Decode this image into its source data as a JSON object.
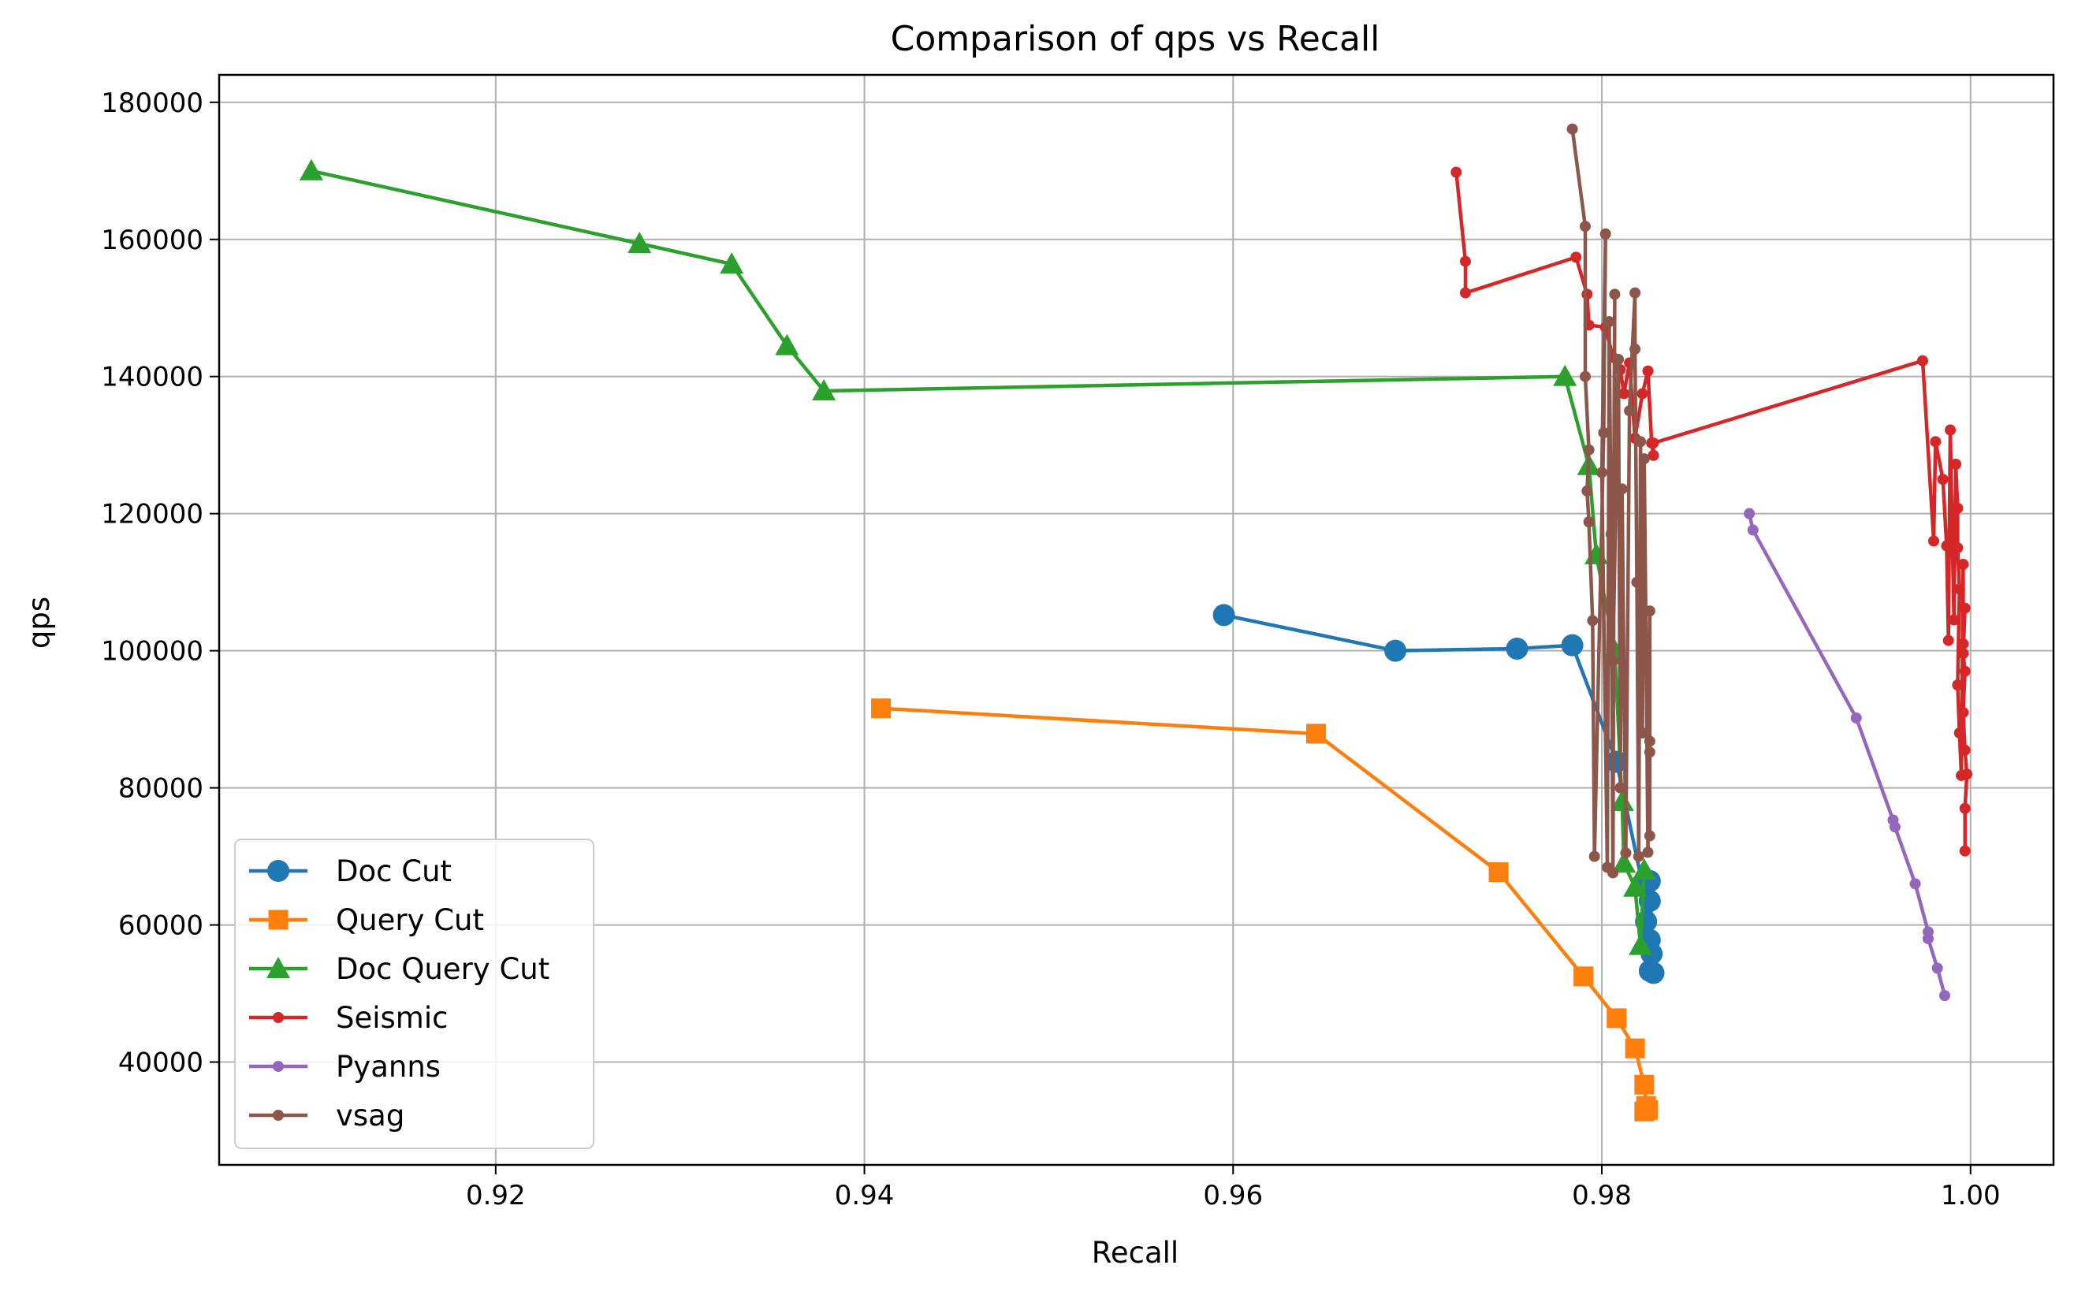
{
  "chart_data": {
    "type": "line",
    "title": "Comparison of qps vs Recall",
    "xlabel": "Recall",
    "ylabel": "qps",
    "xlim": [
      0.905,
      1.0045
    ],
    "ylim": [
      25000,
      184000
    ],
    "xticks": [
      0.92,
      0.94,
      0.96,
      0.98,
      1.0
    ],
    "xtick_labels": [
      "0.92",
      "0.94",
      "0.96",
      "0.98",
      "1.00"
    ],
    "yticks": [
      40000,
      60000,
      80000,
      100000,
      120000,
      140000,
      160000,
      180000
    ],
    "ytick_labels": [
      "40000",
      "60000",
      "80000",
      "100000",
      "120000",
      "140000",
      "160000",
      "180000"
    ],
    "grid": true,
    "legend_position": "lower-left",
    "series": [
      {
        "name": "Doc Cut",
        "color": "#1f77b4",
        "marker": "circle",
        "marker_size": "large",
        "points": [
          [
            0.9595,
            105200
          ],
          [
            0.9688,
            100000
          ],
          [
            0.9754,
            100300
          ],
          [
            0.9784,
            100800
          ],
          [
            0.9808,
            83800
          ],
          [
            0.9822,
            66000
          ],
          [
            0.9826,
            63500
          ],
          [
            0.9824,
            60500
          ],
          [
            0.9826,
            57800
          ],
          [
            0.9827,
            55800
          ],
          [
            0.9826,
            53300
          ],
          [
            0.9828,
            53000
          ],
          [
            0.9826,
            66400
          ]
        ]
      },
      {
        "name": "Query Cut",
        "color": "#ff7f0e",
        "marker": "square",
        "marker_size": "large",
        "points": [
          [
            0.9409,
            91600
          ],
          [
            0.9645,
            87900
          ],
          [
            0.9744,
            67700
          ],
          [
            0.979,
            52500
          ],
          [
            0.9808,
            46400
          ],
          [
            0.9818,
            42000
          ],
          [
            0.9823,
            36700
          ],
          [
            0.9824,
            33600
          ],
          [
            0.9823,
            32800
          ],
          [
            0.9825,
            33000
          ]
        ]
      },
      {
        "name": "Doc Query Cut",
        "color": "#2ca02c",
        "marker": "triangle",
        "marker_size": "large",
        "points": [
          [
            0.91,
            170000
          ],
          [
            0.9278,
            159400
          ],
          [
            0.9328,
            156400
          ],
          [
            0.9358,
            144500
          ],
          [
            0.9378,
            137900
          ],
          [
            0.978,
            140000
          ],
          [
            0.9793,
            127000
          ],
          [
            0.9797,
            114000
          ],
          [
            0.9807,
            100000
          ],
          [
            0.9811,
            78000
          ],
          [
            0.9812,
            69000
          ],
          [
            0.9818,
            65500
          ],
          [
            0.9821,
            57000
          ],
          [
            0.9823,
            68000
          ]
        ]
      },
      {
        "name": "Seismic",
        "color": "#d62728",
        "marker": "dot",
        "marker_size": "small",
        "points": [
          [
            0.9721,
            169800
          ],
          [
            0.9726,
            156800
          ],
          [
            0.9726,
            152200
          ],
          [
            0.9786,
            157400
          ],
          [
            0.9792,
            152000
          ],
          [
            0.9793,
            147500
          ],
          [
            0.9802,
            147200
          ],
          [
            0.9806,
            142800
          ],
          [
            0.981,
            141000
          ],
          [
            0.9812,
            137500
          ],
          [
            0.9815,
            142000
          ],
          [
            0.9818,
            131000
          ],
          [
            0.9822,
            137500
          ],
          [
            0.9825,
            140800
          ],
          [
            0.9827,
            130300
          ],
          [
            0.9828,
            128500
          ],
          [
            0.9828,
            130300
          ],
          [
            0.9974,
            142300
          ],
          [
            0.998,
            116000
          ],
          [
            0.9981,
            130500
          ],
          [
            0.9985,
            125000
          ],
          [
            0.9987,
            115300
          ],
          [
            0.9988,
            101500
          ],
          [
            0.9989,
            132200
          ],
          [
            0.9991,
            104500
          ],
          [
            0.9992,
            127200
          ],
          [
            0.9993,
            120800
          ],
          [
            0.9993,
            115000
          ],
          [
            0.9994,
            109000
          ],
          [
            0.9993,
            95000
          ],
          [
            0.9994,
            88000
          ],
          [
            0.9995,
            81800
          ],
          [
            0.9996,
            112600
          ],
          [
            0.9996,
            101000
          ],
          [
            0.9997,
            106200
          ],
          [
            0.9996,
            99600
          ],
          [
            0.9997,
            97000
          ],
          [
            0.9996,
            91000
          ],
          [
            0.9997,
            85500
          ],
          [
            0.9998,
            82000
          ],
          [
            0.9997,
            77000
          ],
          [
            0.9997,
            70800
          ]
        ]
      },
      {
        "name": "Pyanns",
        "color": "#9467bd",
        "marker": "dot",
        "marker_size": "small",
        "points": [
          [
            0.988,
            120000
          ],
          [
            0.9882,
            117600
          ],
          [
            0.9938,
            90200
          ],
          [
            0.9958,
            75300
          ],
          [
            0.9959,
            74300
          ],
          [
            0.997,
            66000
          ],
          [
            0.9977,
            59000
          ],
          [
            0.9977,
            58000
          ],
          [
            0.9982,
            53700
          ],
          [
            0.9986,
            49700
          ]
        ]
      },
      {
        "name": "vsag",
        "color": "#8c564b",
        "marker": "dot",
        "marker_size": "small",
        "points": [
          [
            0.9784,
            176100
          ],
          [
            0.9791,
            161900
          ],
          [
            0.9791,
            140000
          ],
          [
            0.9793,
            129300
          ],
          [
            0.9792,
            123300
          ],
          [
            0.9793,
            118800
          ],
          [
            0.9795,
            104400
          ],
          [
            0.9796,
            70000
          ],
          [
            0.9801,
            131800
          ],
          [
            0.9802,
            160800
          ],
          [
            0.98,
            126000
          ],
          [
            0.9803,
            68400
          ],
          [
            0.9804,
            148000
          ],
          [
            0.9805,
            117000
          ],
          [
            0.9806,
            67600
          ],
          [
            0.9807,
            152000
          ],
          [
            0.9806,
            98500
          ],
          [
            0.9809,
            142500
          ],
          [
            0.981,
            80000
          ],
          [
            0.9811,
            123600
          ],
          [
            0.9813,
            70500
          ],
          [
            0.9815,
            135000
          ],
          [
            0.9818,
            152200
          ],
          [
            0.9818,
            144000
          ],
          [
            0.9819,
            110000
          ],
          [
            0.982,
            70000
          ],
          [
            0.9821,
            130500
          ],
          [
            0.9822,
            88000
          ],
          [
            0.9823,
            128000
          ],
          [
            0.9824,
            101700
          ],
          [
            0.9825,
            70600
          ],
          [
            0.9826,
            105800
          ],
          [
            0.9826,
            86800
          ],
          [
            0.9826,
            85200
          ],
          [
            0.9826,
            73000
          ]
        ]
      }
    ]
  }
}
